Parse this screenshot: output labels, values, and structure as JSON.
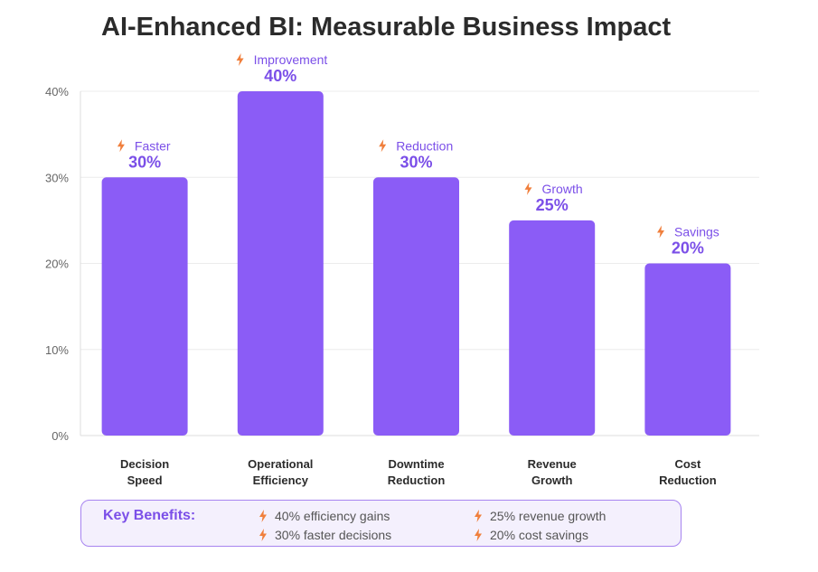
{
  "chart_data": {
    "type": "bar",
    "title": "AI-Enhanced BI: Measurable Business Impact",
    "categories": [
      [
        "Decision",
        "Speed"
      ],
      [
        "Operational",
        "Efficiency"
      ],
      [
        "Downtime",
        "Reduction"
      ],
      [
        "Revenue",
        "Growth"
      ],
      [
        "Cost",
        "Reduction"
      ]
    ],
    "values": [
      30,
      40,
      30,
      25,
      20
    ],
    "value_labels": [
      "30%",
      "40%",
      "30%",
      "25%",
      "20%"
    ],
    "annotations": [
      "Faster",
      "Improvement",
      "Reduction",
      "Growth",
      "Savings"
    ],
    "y_ticks": [
      0,
      10,
      20,
      30,
      40
    ],
    "y_tick_labels": [
      "0%",
      "10%",
      "20%",
      "30%",
      "40%"
    ],
    "ylim": [
      0,
      40
    ],
    "grid": true,
    "bar_color": "#8b5cf6",
    "accent_color": "#7b4fe8",
    "icon": "lightning-icon",
    "icon_color": "#f07f3c"
  },
  "benefits": {
    "label": "Key Benefits:",
    "items": [
      "40% efficiency gains",
      "25% revenue growth",
      "30% faster decisions",
      "20% cost savings"
    ],
    "icon": "lightning-icon"
  }
}
